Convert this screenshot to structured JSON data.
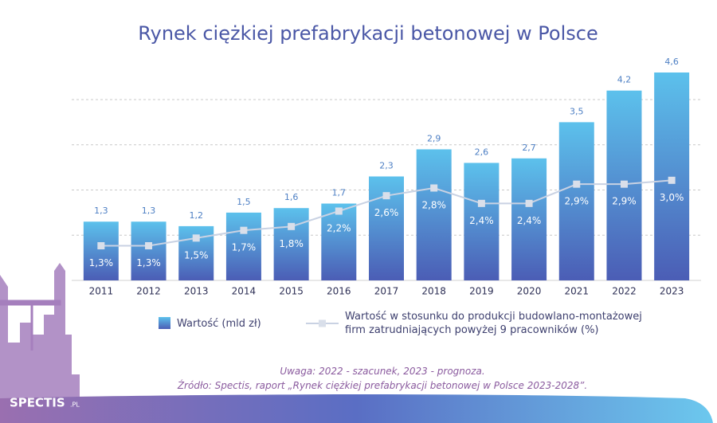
{
  "chart_data": {
    "type": "bar",
    "title": "Rynek ciężkiej prefabrykacji betonowej w Polsce",
    "categories": [
      "2011",
      "2012",
      "2013",
      "2014",
      "2015",
      "2016",
      "2017",
      "2018",
      "2019",
      "2020",
      "2021",
      "2022",
      "2023"
    ],
    "series": [
      {
        "name": "Wartość (mld zł)",
        "color": "#5cc1ec",
        "type": "bar",
        "values": [
          1.3,
          1.3,
          1.2,
          1.5,
          1.6,
          1.7,
          2.3,
          2.9,
          2.6,
          2.7,
          3.5,
          4.2,
          4.6
        ],
        "value_labels": [
          "1,3",
          "1,3",
          "1,2",
          "1,5",
          "1,6",
          "1,7",
          "2,3",
          "2,9",
          "2,6",
          "2,7",
          "3,5",
          "4,2",
          "4,6"
        ]
      },
      {
        "name": "Wartość w stosunku do produkcji budowlano-montażowej firm zatrudniających powyżej 9 pracowników (%)",
        "color": "#c9d2e3",
        "type": "line",
        "axis": "y2",
        "values": [
          1.3,
          1.3,
          1.5,
          1.7,
          1.8,
          2.2,
          2.6,
          2.8,
          2.4,
          2.4,
          2.9,
          2.9,
          3.0
        ],
        "value_labels": [
          "1,3%",
          "1,3%",
          "1,5%",
          "1,7%",
          "1,8%",
          "2,2%",
          "2,6%",
          "2,8%",
          "2,4%",
          "2,4%",
          "2,9%",
          "2,9%",
          "3,0%"
        ]
      }
    ],
    "ylim": [
      0,
      4.6
    ],
    "yticks": [
      1,
      2,
      3,
      4
    ],
    "y2lim": [
      0.4,
      5.8
    ],
    "grid": true
  },
  "notes": [
    "Uwaga: 2022 - szacunek, 2023 - prognoza.",
    "Źródło: Spectis, raport „Rynek ciężkiej prefabrykacji betonowej w Polsce 2023-2028”."
  ],
  "brand": {
    "name": "SPECTIS",
    "suffix": ".PL"
  }
}
